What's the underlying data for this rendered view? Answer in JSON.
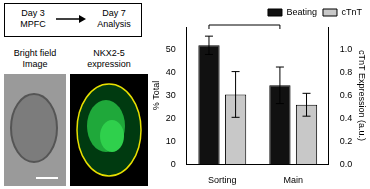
{
  "chart_data": {
    "type": "bar",
    "categories": [
      "Sorting",
      "Main"
    ],
    "series": [
      {
        "name": "Beating",
        "color": "#111111",
        "values": [
          52,
          34.5
        ],
        "errors": [
          4,
          8
        ]
      },
      {
        "name": "cTnT",
        "color": "#c8c8c8",
        "values": [
          0.61,
          0.52
        ],
        "errors": [
          0.2,
          0.1
        ],
        "axis": "y2"
      }
    ],
    "y_label": "% Total",
    "y2_label": "cTnT Expression (a.u.)",
    "ylim": [
      0,
      60
    ],
    "yticks": [
      0,
      10,
      20,
      30,
      40,
      50
    ],
    "y2lim": [
      0,
      1.2
    ],
    "y2ticks": [
      {
        "value": 0,
        "label": "0.0"
      },
      0.2,
      0.4,
      0.6,
      0.8,
      {
        "value": 1,
        "label": "1.0"
      }
    ],
    "grid": false,
    "legend": "upper right"
  },
  "figure": {
    "flow": {
      "from": [
        "Day 3",
        "MPFC"
      ],
      "to": [
        "Day 7",
        "Analysis"
      ]
    },
    "images": [
      {
        "label": [
          "Bright field",
          "Image"
        ]
      },
      {
        "label": [
          "NKX2-5",
          "expression"
        ]
      }
    ]
  }
}
